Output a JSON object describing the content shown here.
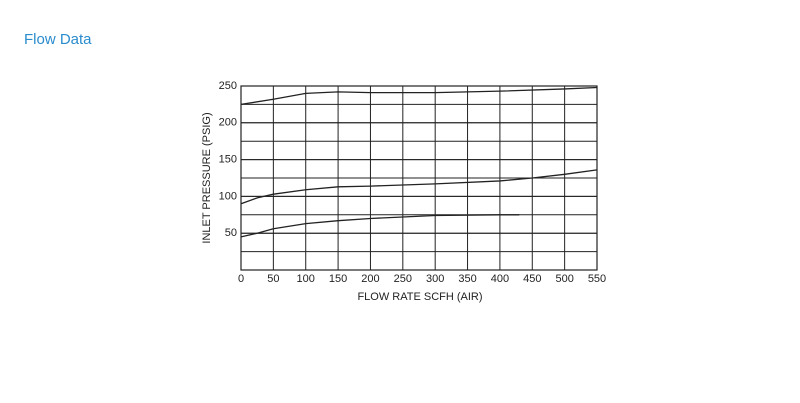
{
  "chart_data": {
    "type": "line",
    "title": "Flow Data",
    "x_label": "FLOW RATE SCFH (AIR)",
    "y_label": "INLET PRESSURE (PSIG)",
    "xlim": [
      0,
      550
    ],
    "xticks": [
      0,
      50,
      100,
      150,
      200,
      250,
      300,
      350,
      400,
      450,
      500,
      550
    ],
    "ylim": [
      0,
      250
    ],
    "yticks": [
      50,
      100,
      150,
      200,
      250
    ],
    "grid": true,
    "minor_grid": true,
    "series": [
      {
        "color": "#222222",
        "x": [
          0,
          50,
          100,
          150,
          200,
          300,
          400,
          500,
          550
        ],
        "values": [
          225,
          232,
          240,
          242,
          241,
          241,
          243,
          246,
          248
        ]
      },
      {
        "color": "#222222",
        "x": [
          0,
          25,
          50,
          100,
          150,
          200,
          300,
          400,
          450,
          500,
          550
        ],
        "values": [
          90,
          98,
          103,
          109,
          113,
          114,
          117,
          121,
          125,
          130,
          136
        ]
      },
      {
        "color": "#222222",
        "x": [
          0,
          25,
          50,
          100,
          150,
          200,
          300,
          400,
          430
        ],
        "values": [
          45,
          50,
          56,
          63,
          67,
          70,
          74,
          75,
          75
        ]
      }
    ]
  }
}
